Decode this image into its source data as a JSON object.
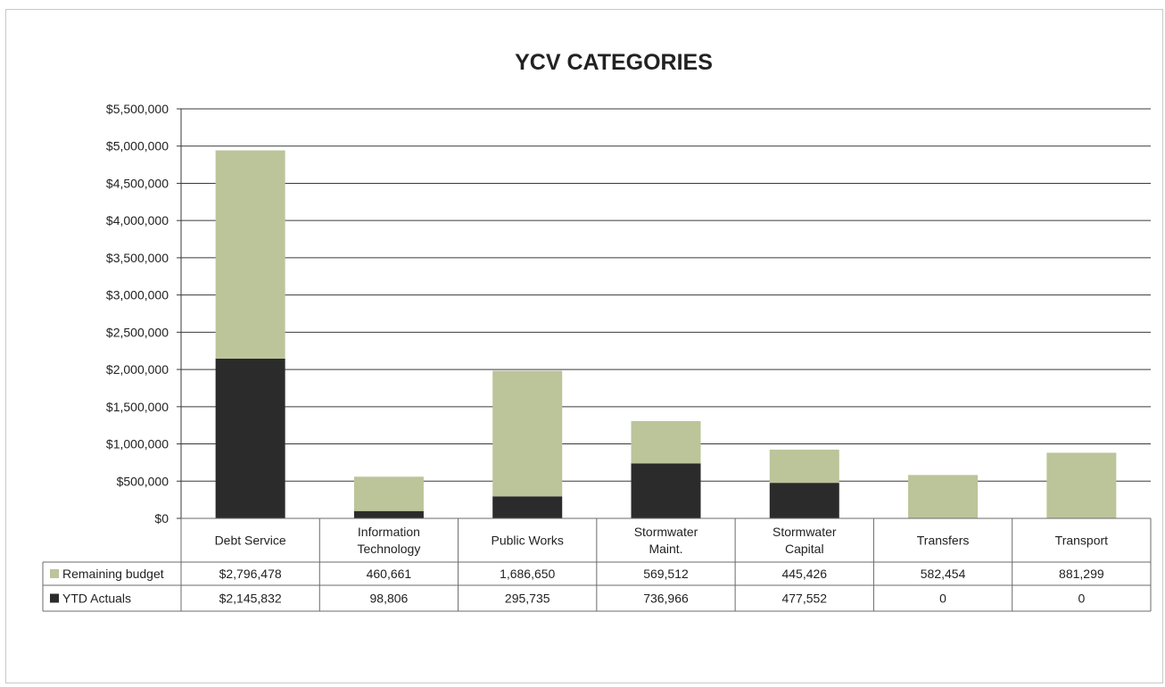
{
  "chart_data": {
    "type": "bar",
    "stacked": true,
    "title": "YCV CATEGORIES",
    "categories": [
      [
        "Debt Service"
      ],
      [
        "Information",
        "Technology"
      ],
      [
        "Public Works"
      ],
      [
        "Stormwater",
        "Maint."
      ],
      [
        "Stormwater",
        "Capital"
      ],
      [
        "Transfers"
      ],
      [
        "Transport"
      ]
    ],
    "series": [
      {
        "name": "YTD Actuals",
        "color": "#2b2b2b",
        "values": [
          2145832,
          98806,
          295735,
          736966,
          477552,
          0,
          0
        ],
        "labels": [
          "$2,145,832",
          "98,806",
          "295,735",
          "736,966",
          "477,552",
          "0",
          "0"
        ]
      },
      {
        "name": "Remaining budget",
        "color": "#bcc49a",
        "values": [
          2796478,
          460661,
          1686650,
          569512,
          445426,
          582454,
          881299
        ],
        "labels": [
          "$2,796,478",
          "460,661",
          "1,686,650",
          "569,512",
          "445,426",
          "582,454",
          "881,299"
        ]
      }
    ],
    "ylim": [
      0,
      5500000
    ],
    "yticks": [
      {
        "value": 0,
        "label": "$0"
      },
      {
        "value": 500000,
        "label": "$500,000"
      },
      {
        "value": 1000000,
        "label": "$1,000,000"
      },
      {
        "value": 1500000,
        "label": "$1,500,000"
      },
      {
        "value": 2000000,
        "label": "$2,000,000"
      },
      {
        "value": 2500000,
        "label": "$2,500,000"
      },
      {
        "value": 3000000,
        "label": "$3,000,000"
      },
      {
        "value": 3500000,
        "label": "$3,500,000"
      },
      {
        "value": 4000000,
        "label": "$4,000,000"
      },
      {
        "value": 4500000,
        "label": "$4,500,000"
      },
      {
        "value": 5000000,
        "label": "$5,000,000"
      },
      {
        "value": 5500000,
        "label": "$5,500,000"
      }
    ],
    "grid": true,
    "legend": "data-table"
  }
}
